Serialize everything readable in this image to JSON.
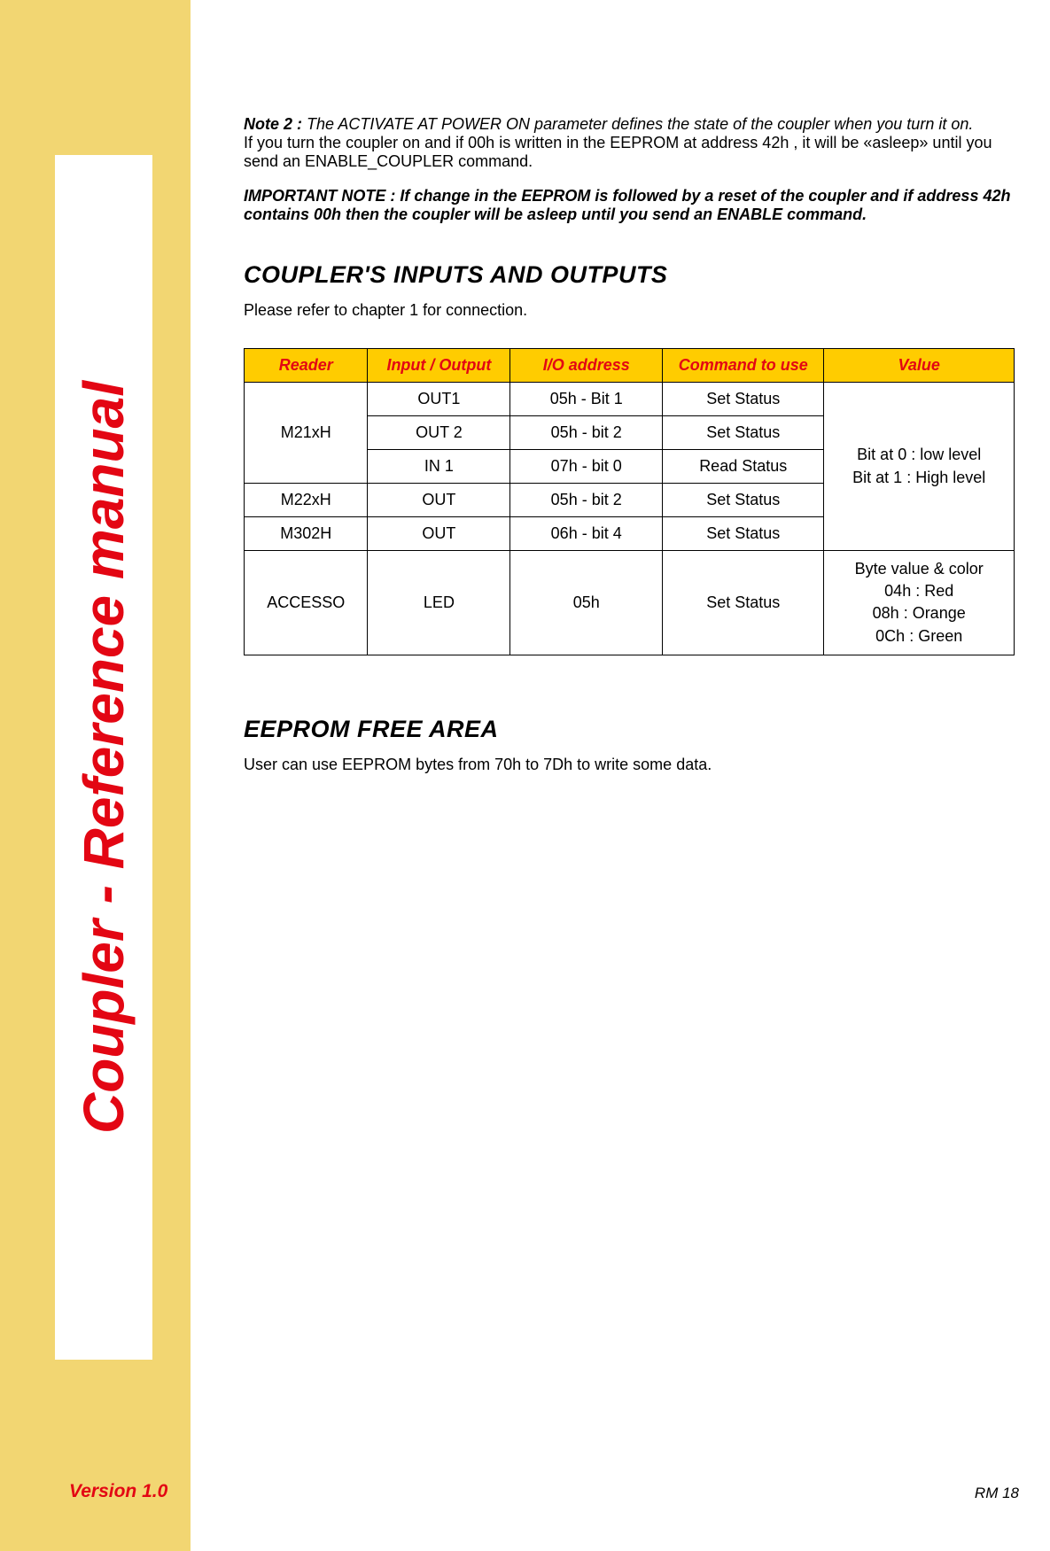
{
  "sidebar": {
    "title": "Coupler - Reference manual",
    "version": "Version 1.0",
    "bg_color": "#f2d672",
    "inner_bg": "#ffffff",
    "title_color": "#e30613"
  },
  "note2": {
    "label": "Note 2 : ",
    "line1": "The ACTIVATE AT POWER ON parameter defines the state of the coupler when you turn it on.",
    "line2": "If you turn the coupler on and if 00h is written in the EEPROM at address 42h , it will be «asleep» until you send an ENABLE_COUPLER command."
  },
  "important": {
    "text": "IMPORTANT NOTE : If change in the EEPROM is followed by a reset of the coupler and if address 42h contains 00h then the coupler will be asleep until you send an ENABLE command."
  },
  "section_io": {
    "title": "COUPLER'S INPUTS AND OUTPUTS",
    "subtitle": "Please refer to chapter 1 for connection."
  },
  "table": {
    "header_bg": "#ffcc00",
    "header_color": "#e30613",
    "columns": [
      "Reader",
      "Input / Output",
      "I/O address",
      "Command to use",
      "Value"
    ],
    "m21xh_label": "M21xH",
    "m21xh_rows": [
      {
        "io": "OUT1",
        "addr": "05h - Bit 1",
        "cmd": "Set Status"
      },
      {
        "io": "OUT 2",
        "addr": "05h - bit 2",
        "cmd": "Set Status"
      },
      {
        "io": "IN 1",
        "addr": "07h - bit 0",
        "cmd": "Read Status"
      }
    ],
    "m22xh": {
      "reader": "M22xH",
      "io": "OUT",
      "addr": "05h - bit 2",
      "cmd": "Set Status"
    },
    "m302h": {
      "reader": "M302H",
      "io": "OUT",
      "addr": "06h - bit 4",
      "cmd": "Set Status"
    },
    "bit_value_line1": "Bit at 0 : low level",
    "bit_value_line2": "Bit at 1 : High level",
    "accesso": {
      "reader": "ACCESSO",
      "io": "LED",
      "addr": "05h",
      "cmd": "Set Status",
      "val_line1": "Byte value & color",
      "val_line2": "04h : Red",
      "val_line3": "08h : Orange",
      "val_line4": "0Ch : Green"
    }
  },
  "section_eeprom": {
    "title": "EEPROM FREE AREA",
    "text": "User can use EEPROM bytes from 70h to 7Dh to write some data."
  },
  "footer": {
    "page": "RM 18"
  }
}
